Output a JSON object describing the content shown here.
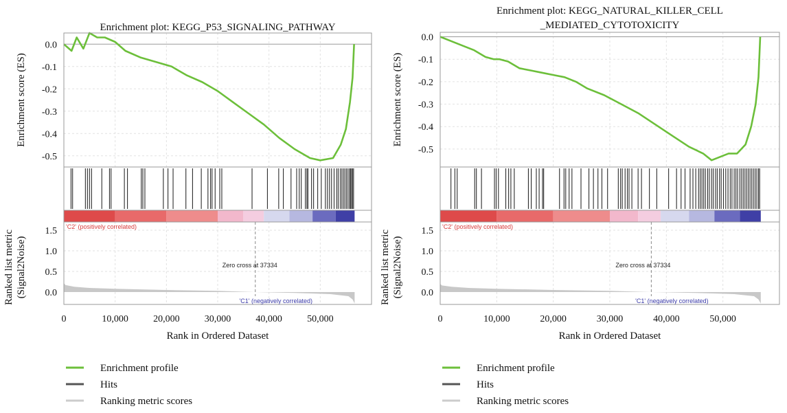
{
  "colors": {
    "enrichment": "#6cbf3a",
    "hits": "#2b2b2b",
    "metric": "#c8c8c8",
    "frame": "#999999",
    "grid": "#e2e2e2",
    "zero_line": "#9a9a9a",
    "pos_label": "#d83b3b",
    "neg_label": "#3a3aa8"
  },
  "legend": {
    "items": [
      {
        "label": "Enrichment profile",
        "color": "#6cbf3a"
      },
      {
        "label": "Hits",
        "color": "#555555"
      },
      {
        "label": "Ranking metric scores",
        "color": "#cccccc"
      }
    ]
  },
  "chart_data": [
    {
      "type": "line",
      "title": "Enrichment plot: KEGG_P53_SIGNALING_PATHWAY",
      "es_ylabel": "Enrichment score (ES)",
      "metric_ylabel_1": "Ranked list metric",
      "metric_ylabel_2": "(Signal2Noise)",
      "xlabel": "Rank in Ordered Dataset",
      "xlim": [
        0,
        60000
      ],
      "x_ticks": [
        0,
        10000,
        20000,
        30000,
        40000,
        50000
      ],
      "x_tick_labels": [
        "0",
        "10,000",
        "20,000",
        "30,000",
        "40,000",
        "50,000"
      ],
      "es_ylim": [
        -0.55,
        0.05
      ],
      "es_ticks": [
        0.0,
        -0.1,
        -0.2,
        -0.3,
        -0.4,
        -0.5
      ],
      "es_tick_labels": [
        "0.0",
        "-0.1",
        "-0.2",
        "-0.3",
        "-0.4",
        "-0.5"
      ],
      "metric_ylim": [
        -0.3,
        1.7
      ],
      "metric_ticks": [
        1.5,
        1.0,
        0.5,
        0.0
      ],
      "metric_tick_labels": [
        "1.5",
        "1.0",
        "0.5",
        "0.0"
      ],
      "dataset_end": 56700,
      "zero_cross": 37334,
      "zero_cross_label": "Zero cross at 37334",
      "pos_label": "'C2' (positively correlated)",
      "neg_label": "'C1' (negatively correlated)",
      "es_curve": [
        [
          0,
          0.0
        ],
        [
          500,
          -0.01
        ],
        [
          1500,
          -0.03
        ],
        [
          2500,
          0.03
        ],
        [
          3800,
          -0.02
        ],
        [
          5000,
          0.05
        ],
        [
          6500,
          0.03
        ],
        [
          8000,
          0.03
        ],
        [
          10000,
          0.01
        ],
        [
          12000,
          -0.03
        ],
        [
          15000,
          -0.06
        ],
        [
          18000,
          -0.08
        ],
        [
          21000,
          -0.1
        ],
        [
          24000,
          -0.14
        ],
        [
          27000,
          -0.17
        ],
        [
          30000,
          -0.21
        ],
        [
          33000,
          -0.26
        ],
        [
          36000,
          -0.31
        ],
        [
          39000,
          -0.36
        ],
        [
          42000,
          -0.42
        ],
        [
          45000,
          -0.47
        ],
        [
          48000,
          -0.51
        ],
        [
          50000,
          -0.52
        ],
        [
          52500,
          -0.51
        ],
        [
          54000,
          -0.45
        ],
        [
          55000,
          -0.38
        ],
        [
          55800,
          -0.26
        ],
        [
          56300,
          -0.15
        ],
        [
          56600,
          0.0
        ]
      ],
      "hits": [
        1400,
        1700,
        4200,
        4600,
        5000,
        5400,
        7400,
        8900,
        9200,
        11800,
        12400,
        15100,
        15400,
        15800,
        19400,
        20300,
        21300,
        23800,
        25100,
        26800,
        28100,
        28600,
        28900,
        29500,
        30400,
        30800,
        36700,
        39700,
        41900,
        42800,
        44300,
        45400,
        45900,
        46300,
        47100,
        47400,
        47600,
        48300,
        48700,
        49500,
        50200,
        51000,
        51400,
        51800,
        52200,
        52700,
        53200,
        53500,
        53900,
        54200,
        54500,
        54800,
        55100,
        55400,
        55700,
        55900,
        56100,
        56300,
        56500
      ],
      "gradient": [
        {
          "from": 0,
          "to": 10000,
          "color": "#de4a4a"
        },
        {
          "from": 10000,
          "to": 20000,
          "color": "#e86a6a"
        },
        {
          "from": 20000,
          "to": 30000,
          "color": "#ee8c8c"
        },
        {
          "from": 30000,
          "to": 35000,
          "color": "#f2b8cc"
        },
        {
          "from": 35000,
          "to": 39000,
          "color": "#f4cde0"
        },
        {
          "from": 39000,
          "to": 44000,
          "color": "#d6d8ee"
        },
        {
          "from": 44000,
          "to": 48500,
          "color": "#b6b8e0"
        },
        {
          "from": 48500,
          "to": 53000,
          "color": "#6b6bbf"
        },
        {
          "from": 53000,
          "to": 56700,
          "color": "#3f3fa6"
        }
      ],
      "metric_curve": [
        [
          0,
          0.22
        ],
        [
          300,
          0.17
        ],
        [
          2000,
          0.13
        ],
        [
          5000,
          0.1
        ],
        [
          10000,
          0.08
        ],
        [
          20000,
          0.05
        ],
        [
          30000,
          0.03
        ],
        [
          37334,
          0.0
        ],
        [
          45000,
          -0.02
        ],
        [
          52000,
          -0.05
        ],
        [
          55500,
          -0.1
        ],
        [
          56300,
          -0.18
        ],
        [
          56700,
          -0.28
        ]
      ]
    },
    {
      "type": "line",
      "title": "Enrichment plot: KEGG_NATURAL_KILLER_CELL",
      "title_line2": "_MEDIATED_CYTOTOXICITY",
      "es_ylabel": "Enrichment score (ES)",
      "metric_ylabel_1": "Ranked list metric",
      "metric_ylabel_2": "(Signal2Noise)",
      "xlabel": "Rank in Ordered Dataset",
      "xlim": [
        0,
        60000
      ],
      "x_ticks": [
        0,
        10000,
        20000,
        30000,
        40000,
        50000
      ],
      "x_tick_labels": [
        "0",
        "10,000",
        "20,000",
        "30,000",
        "40,000",
        "50,000"
      ],
      "es_ylim": [
        -0.58,
        0.02
      ],
      "es_ticks": [
        0.0,
        -0.1,
        -0.2,
        -0.3,
        -0.4,
        -0.5
      ],
      "es_tick_labels": [
        "0.0",
        "-0.1",
        "-0.2",
        "-0.3",
        "-0.4",
        "-0.5"
      ],
      "metric_ylim": [
        -0.3,
        1.7
      ],
      "metric_ticks": [
        1.5,
        1.0,
        0.5,
        0.0
      ],
      "metric_tick_labels": [
        "1.5",
        "1.0",
        "0.5",
        "0.0"
      ],
      "dataset_end": 56700,
      "zero_cross": 37334,
      "zero_cross_label": "Zero cross at 37334",
      "pos_label": "'C2' (positively correlated)",
      "neg_label": "'C1' (negatively correlated)",
      "es_curve": [
        [
          0,
          0.0
        ],
        [
          2000,
          -0.02
        ],
        [
          4000,
          -0.04
        ],
        [
          6000,
          -0.06
        ],
        [
          8000,
          -0.09
        ],
        [
          9500,
          -0.1
        ],
        [
          10500,
          -0.1
        ],
        [
          12000,
          -0.11
        ],
        [
          14000,
          -0.14
        ],
        [
          16000,
          -0.15
        ],
        [
          18000,
          -0.16
        ],
        [
          20000,
          -0.17
        ],
        [
          22000,
          -0.18
        ],
        [
          24000,
          -0.2
        ],
        [
          26000,
          -0.23
        ],
        [
          29000,
          -0.26
        ],
        [
          32000,
          -0.3
        ],
        [
          35000,
          -0.34
        ],
        [
          38000,
          -0.39
        ],
        [
          41000,
          -0.44
        ],
        [
          44000,
          -0.49
        ],
        [
          46500,
          -0.52
        ],
        [
          48000,
          -0.55
        ],
        [
          49000,
          -0.54
        ],
        [
          51000,
          -0.52
        ],
        [
          52500,
          -0.52
        ],
        [
          54000,
          -0.48
        ],
        [
          55000,
          -0.4
        ],
        [
          55800,
          -0.3
        ],
        [
          56300,
          -0.18
        ],
        [
          56600,
          0.0
        ]
      ],
      "hits": [
        1900,
        2600,
        3000,
        6100,
        6400,
        7300,
        9600,
        9900,
        10300,
        11600,
        12100,
        12500,
        13100,
        15600,
        16100,
        17000,
        17500,
        18100,
        18300,
        21100,
        21900,
        22200,
        22800,
        23300,
        24900,
        26300,
        27100,
        27900,
        28600,
        29600,
        31500,
        31900,
        32200,
        32700,
        33100,
        33400,
        33900,
        35000,
        35600,
        37000,
        38300,
        40400,
        41800,
        42600,
        43300,
        44200,
        44700,
        45200,
        45700,
        46000,
        46300,
        46600,
        46900,
        47300,
        47600,
        48000,
        48300,
        48700,
        49000,
        49400,
        49700,
        50100,
        50500,
        50900,
        51300,
        51600,
        52000,
        52300,
        52600,
        53000,
        53300,
        53600,
        53900,
        54200,
        54500,
        54800,
        55100,
        55400,
        55700,
        56000,
        56300,
        56500
      ],
      "gradient": [
        {
          "from": 0,
          "to": 10000,
          "color": "#de4a4a"
        },
        {
          "from": 10000,
          "to": 20000,
          "color": "#e86a6a"
        },
        {
          "from": 20000,
          "to": 30000,
          "color": "#ee8c8c"
        },
        {
          "from": 30000,
          "to": 35000,
          "color": "#f2b8cc"
        },
        {
          "from": 35000,
          "to": 39000,
          "color": "#f4cde0"
        },
        {
          "from": 39000,
          "to": 44000,
          "color": "#d6d8ee"
        },
        {
          "from": 44000,
          "to": 48500,
          "color": "#b6b8e0"
        },
        {
          "from": 48500,
          "to": 53000,
          "color": "#6b6bbf"
        },
        {
          "from": 53000,
          "to": 56700,
          "color": "#3f3fa6"
        }
      ],
      "metric_curve": [
        [
          0,
          0.2
        ],
        [
          300,
          0.16
        ],
        [
          2000,
          0.13
        ],
        [
          5000,
          0.1
        ],
        [
          10000,
          0.08
        ],
        [
          20000,
          0.05
        ],
        [
          30000,
          0.03
        ],
        [
          37334,
          0.0
        ],
        [
          45000,
          -0.02
        ],
        [
          52000,
          -0.05
        ],
        [
          55500,
          -0.1
        ],
        [
          56300,
          -0.18
        ],
        [
          56700,
          -0.28
        ]
      ]
    }
  ]
}
